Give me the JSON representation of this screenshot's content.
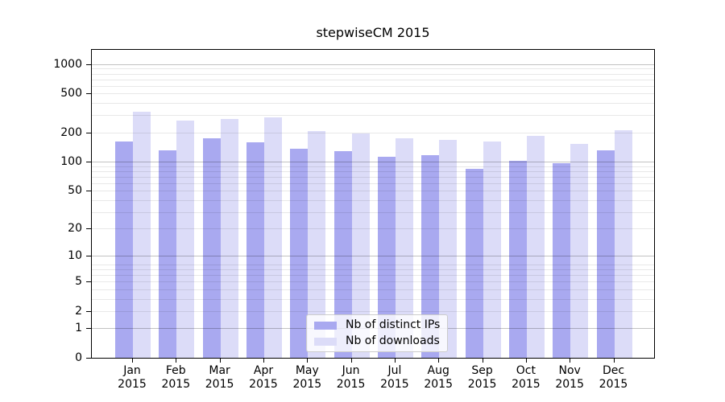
{
  "title": "stepwiseCM 2015",
  "legend": {
    "items": [
      {
        "label": "Nb of distinct IPs",
        "color": "#a9a9f0"
      },
      {
        "label": "Nb of downloads",
        "color": "#dcdcf8"
      }
    ]
  },
  "colors": {
    "bar_dark": "#a9a9f0",
    "bar_light": "#dcdcf8",
    "grid_major": "rgba(0,0,0,0.24)",
    "grid_minor": "rgba(0,0,0,0.09)",
    "spine": "#000000",
    "legend_border": "#cccccc"
  },
  "chart_data": {
    "type": "bar",
    "title": "stepwiseCM 2015",
    "xlabel": "",
    "ylabel": "",
    "y_scale": "log1p",
    "ylim": [
      0,
      1390
    ],
    "categories": [
      "Jan",
      "Feb",
      "Mar",
      "Apr",
      "May",
      "Jun",
      "Jul",
      "Aug",
      "Sep",
      "Oct",
      "Nov",
      "Dec"
    ],
    "category_year": "2015",
    "series": [
      {
        "name": "Nb of distinct IPs",
        "color": "#a9a9f0",
        "values": [
          163,
          130,
          173,
          158,
          136,
          128,
          113,
          116,
          84,
          103,
          96,
          130
        ]
      },
      {
        "name": "Nb of downloads",
        "color": "#dcdcf8",
        "values": [
          327,
          267,
          274,
          283,
          206,
          194,
          173,
          167,
          160,
          185,
          153,
          210
        ]
      }
    ],
    "y_ticks": [
      1000,
      500,
      200,
      100,
      50,
      20,
      10,
      5,
      2,
      1,
      0
    ],
    "grid": {
      "orientation": "horizontal",
      "major": [
        1,
        10,
        100,
        1000
      ],
      "minor": [
        2,
        3,
        4,
        5,
        6,
        7,
        8,
        20,
        30,
        40,
        50,
        60,
        70,
        80,
        90,
        200,
        300,
        400,
        500,
        600,
        700,
        800,
        900
      ]
    },
    "legend_position": "inside lower-center"
  }
}
